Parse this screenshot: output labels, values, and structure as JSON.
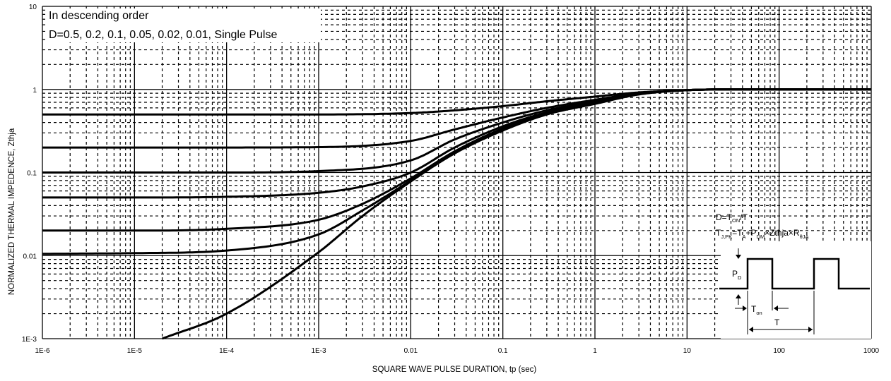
{
  "chart_data": {
    "type": "line",
    "xscale": "log",
    "yscale": "log",
    "xlim": [
      1e-06,
      1000
    ],
    "ylim": [
      0.001,
      10
    ],
    "grid": true,
    "xlabel": "SQUARE WAVE PULSE DURATION,  tp (sec)",
    "ylabel": "NORMALIZED THERMAL IMPEDENCE,  Zthja",
    "x_ticks": [
      1e-06,
      1e-05,
      0.0001,
      0.001,
      0.01,
      0.1,
      1,
      10,
      100,
      1000
    ],
    "x_tick_labels": [
      "1E-6",
      "1E-5",
      "1E-4",
      "1E-3",
      "0.01",
      "0.1",
      "1",
      "10",
      "100",
      "1000"
    ],
    "y_ticks": [
      0.001,
      0.01,
      0.1,
      1,
      10
    ],
    "y_tick_labels": [
      "1E-3",
      "0.01",
      "0.1",
      "1",
      "10"
    ],
    "annotation": {
      "line1": "In descending order",
      "line2": "D=0.5, 0.2, 0.1, 0.05, 0.02, 0.01, Single Pulse"
    },
    "series": [
      {
        "name": "0.5",
        "x": [
          1e-06,
          1e-05,
          0.0001,
          0.001,
          0.01,
          0.03,
          0.1,
          0.3,
          1,
          3,
          10,
          30,
          100,
          1000
        ],
        "y": [
          0.5,
          0.5,
          0.5,
          0.5,
          0.52,
          0.56,
          0.63,
          0.72,
          0.82,
          0.92,
          0.98,
          1,
          1,
          1
        ]
      },
      {
        "name": "0.2",
        "x": [
          1e-06,
          1e-05,
          0.0001,
          0.001,
          0.01,
          0.03,
          0.1,
          0.3,
          1,
          3,
          10,
          30,
          100,
          1000
        ],
        "y": [
          0.2,
          0.2,
          0.2,
          0.202,
          0.24,
          0.33,
          0.46,
          0.6,
          0.75,
          0.9,
          0.98,
          1,
          1,
          1
        ]
      },
      {
        "name": "0.1",
        "x": [
          1e-06,
          1e-05,
          0.0001,
          0.001,
          0.01,
          0.03,
          0.1,
          0.3,
          1,
          3,
          10,
          30,
          100,
          1000
        ],
        "y": [
          0.1,
          0.1,
          0.1,
          0.104,
          0.14,
          0.25,
          0.4,
          0.56,
          0.72,
          0.89,
          0.98,
          1,
          1,
          1
        ]
      },
      {
        "name": "0.05",
        "x": [
          1e-06,
          1e-05,
          0.0001,
          0.001,
          0.003,
          0.01,
          0.03,
          0.1,
          0.3,
          1,
          3,
          10,
          30,
          100,
          1000
        ],
        "y": [
          0.05,
          0.05,
          0.051,
          0.057,
          0.068,
          0.1,
          0.2,
          0.36,
          0.53,
          0.7,
          0.88,
          0.98,
          1,
          1,
          1
        ]
      },
      {
        "name": "0.02",
        "x": [
          1e-06,
          1e-05,
          0.0001,
          0.001,
          0.003,
          0.01,
          0.03,
          0.1,
          0.3,
          1,
          3,
          10,
          30,
          100,
          1000
        ],
        "y": [
          0.02,
          0.02,
          0.021,
          0.027,
          0.042,
          0.085,
          0.18,
          0.34,
          0.52,
          0.69,
          0.88,
          0.98,
          1,
          1,
          1
        ]
      },
      {
        "name": "0.01",
        "x": [
          1e-06,
          1e-05,
          0.0001,
          0.001,
          0.003,
          0.01,
          0.03,
          0.1,
          0.3,
          1,
          3,
          10,
          30,
          100,
          1000
        ],
        "y": [
          0.0105,
          0.0107,
          0.0115,
          0.018,
          0.035,
          0.08,
          0.175,
          0.33,
          0.51,
          0.68,
          0.88,
          0.98,
          1,
          1,
          1
        ]
      },
      {
        "name": "Single Pulse",
        "x": [
          2e-05,
          0.0001,
          0.001,
          0.003,
          0.01,
          0.03,
          0.1,
          0.3,
          1,
          3,
          10,
          30,
          100,
          1000
        ],
        "y": [
          0.001,
          0.002,
          0.011,
          0.03,
          0.078,
          0.17,
          0.32,
          0.5,
          0.67,
          0.87,
          0.98,
          1,
          1,
          1
        ]
      }
    ],
    "inset": {
      "formula_d": "D=T",
      "formula_d_sub": "ON",
      "formula_d_tail": "/T",
      "t_main": "T",
      "t_sub": "J,PK",
      "eq_a": "=T",
      "eq_a_sub": "A",
      "eq_p": "+P",
      "eq_p_sub": "DM",
      "eq_tail": "×Zthja×R",
      "eq_r_sub": "θJA",
      "pd_label": "P",
      "pd_sub": "D",
      "ton_label": "T",
      "ton_sub": "on",
      "period_label": "T"
    }
  }
}
